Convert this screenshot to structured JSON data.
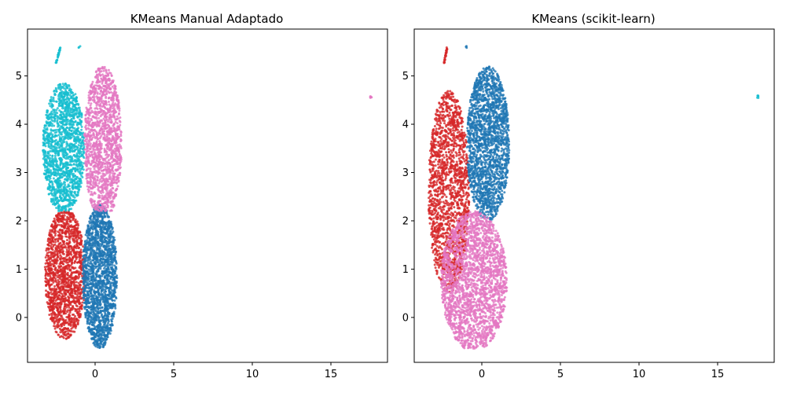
{
  "chart_data": [
    {
      "type": "scatter",
      "title": "KMeans Manual Adaptado",
      "xlabel": "",
      "ylabel": "",
      "xlim": [
        -4.3,
        18.6
      ],
      "ylim": [
        -0.93,
        5.97
      ],
      "xticks": [
        0,
        5,
        10,
        15
      ],
      "yticks": [
        0,
        1,
        2,
        3,
        4,
        5
      ],
      "grid": false,
      "legend": "none",
      "colors": {
        "blue": "#1f77b4",
        "red": "#d62728",
        "pink": "#e377c2",
        "cyan": "#17becf"
      },
      "clusters": [
        {
          "color": "red",
          "n": 1500,
          "x_range": [
            -3.2,
            -0.6
          ],
          "y_range": [
            -0.45,
            2.2
          ],
          "center": [
            -1.9,
            0.9
          ],
          "radius": [
            1.3,
            1.35
          ],
          "mode": "ellipse"
        },
        {
          "color": "blue",
          "n": 1800,
          "x_range": [
            -0.8,
            1.5
          ],
          "y_range": [
            -0.65,
            2.35
          ],
          "center": [
            0.3,
            0.85
          ],
          "radius": [
            1.1,
            1.5
          ],
          "mode": "ellipse"
        },
        {
          "color": "cyan",
          "n": 1500,
          "x_range": [
            -3.4,
            -0.7
          ],
          "y_range": [
            2.2,
            4.85
          ],
          "center": [
            -2.0,
            3.5
          ],
          "radius": [
            1.35,
            1.35
          ],
          "mode": "ellipse"
        },
        {
          "color": "pink",
          "n": 1400,
          "x_range": [
            -0.7,
            1.8
          ],
          "y_range": [
            2.2,
            5.2
          ],
          "center": [
            0.5,
            3.6
          ],
          "radius": [
            1.2,
            1.6
          ],
          "mode": "ellipse"
        },
        {
          "color": "cyan",
          "n": 30,
          "x_range": [
            -2.5,
            -2.2
          ],
          "y_range": [
            5.25,
            5.6
          ],
          "mode": "line"
        },
        {
          "color": "cyan",
          "n": 3,
          "x_range": [
            -1.05,
            -0.95
          ],
          "y_range": [
            5.58,
            5.62
          ],
          "mode": "box"
        },
        {
          "color": "pink",
          "n": 6,
          "x_range": [
            17.5,
            17.6
          ],
          "y_range": [
            4.54,
            4.6
          ],
          "mode": "box"
        }
      ]
    },
    {
      "type": "scatter",
      "title": "KMeans (scikit-learn)",
      "xlabel": "",
      "ylabel": "",
      "xlim": [
        -4.3,
        18.6
      ],
      "ylim": [
        -0.93,
        5.97
      ],
      "xticks": [
        0,
        5,
        10,
        15
      ],
      "yticks": [
        0,
        1,
        2,
        3,
        4,
        5
      ],
      "grid": false,
      "legend": "none",
      "colors": {
        "blue": "#1f77b4",
        "red": "#d62728",
        "pink": "#e377c2",
        "cyan": "#17becf"
      },
      "clusters": [
        {
          "color": "red",
          "n": 1700,
          "x_range": [
            -3.4,
            -0.8
          ],
          "y_range": [
            0.5,
            4.7
          ],
          "center": [
            -2.1,
            2.6
          ],
          "radius": [
            1.3,
            2.1
          ],
          "mode": "ellipse"
        },
        {
          "color": "blue",
          "n": 1900,
          "x_range": [
            -1.0,
            1.8
          ],
          "y_range": [
            2.0,
            5.2
          ],
          "center": [
            0.4,
            3.6
          ],
          "radius": [
            1.35,
            1.6
          ],
          "mode": "ellipse"
        },
        {
          "color": "pink",
          "n": 2200,
          "x_range": [
            -2.6,
            1.6
          ],
          "y_range": [
            -0.65,
            2.2
          ],
          "center": [
            -0.5,
            0.75
          ],
          "radius": [
            2.1,
            1.45
          ],
          "mode": "ellipse"
        },
        {
          "color": "red",
          "n": 30,
          "x_range": [
            -2.4,
            -2.2
          ],
          "y_range": [
            5.25,
            5.6
          ],
          "mode": "line"
        },
        {
          "color": "blue",
          "n": 3,
          "x_range": [
            -1.05,
            -0.95
          ],
          "y_range": [
            5.58,
            5.62
          ],
          "mode": "box"
        },
        {
          "color": "cyan",
          "n": 6,
          "x_range": [
            17.5,
            17.6
          ],
          "y_range": [
            4.54,
            4.6
          ],
          "mode": "box"
        }
      ]
    }
  ]
}
